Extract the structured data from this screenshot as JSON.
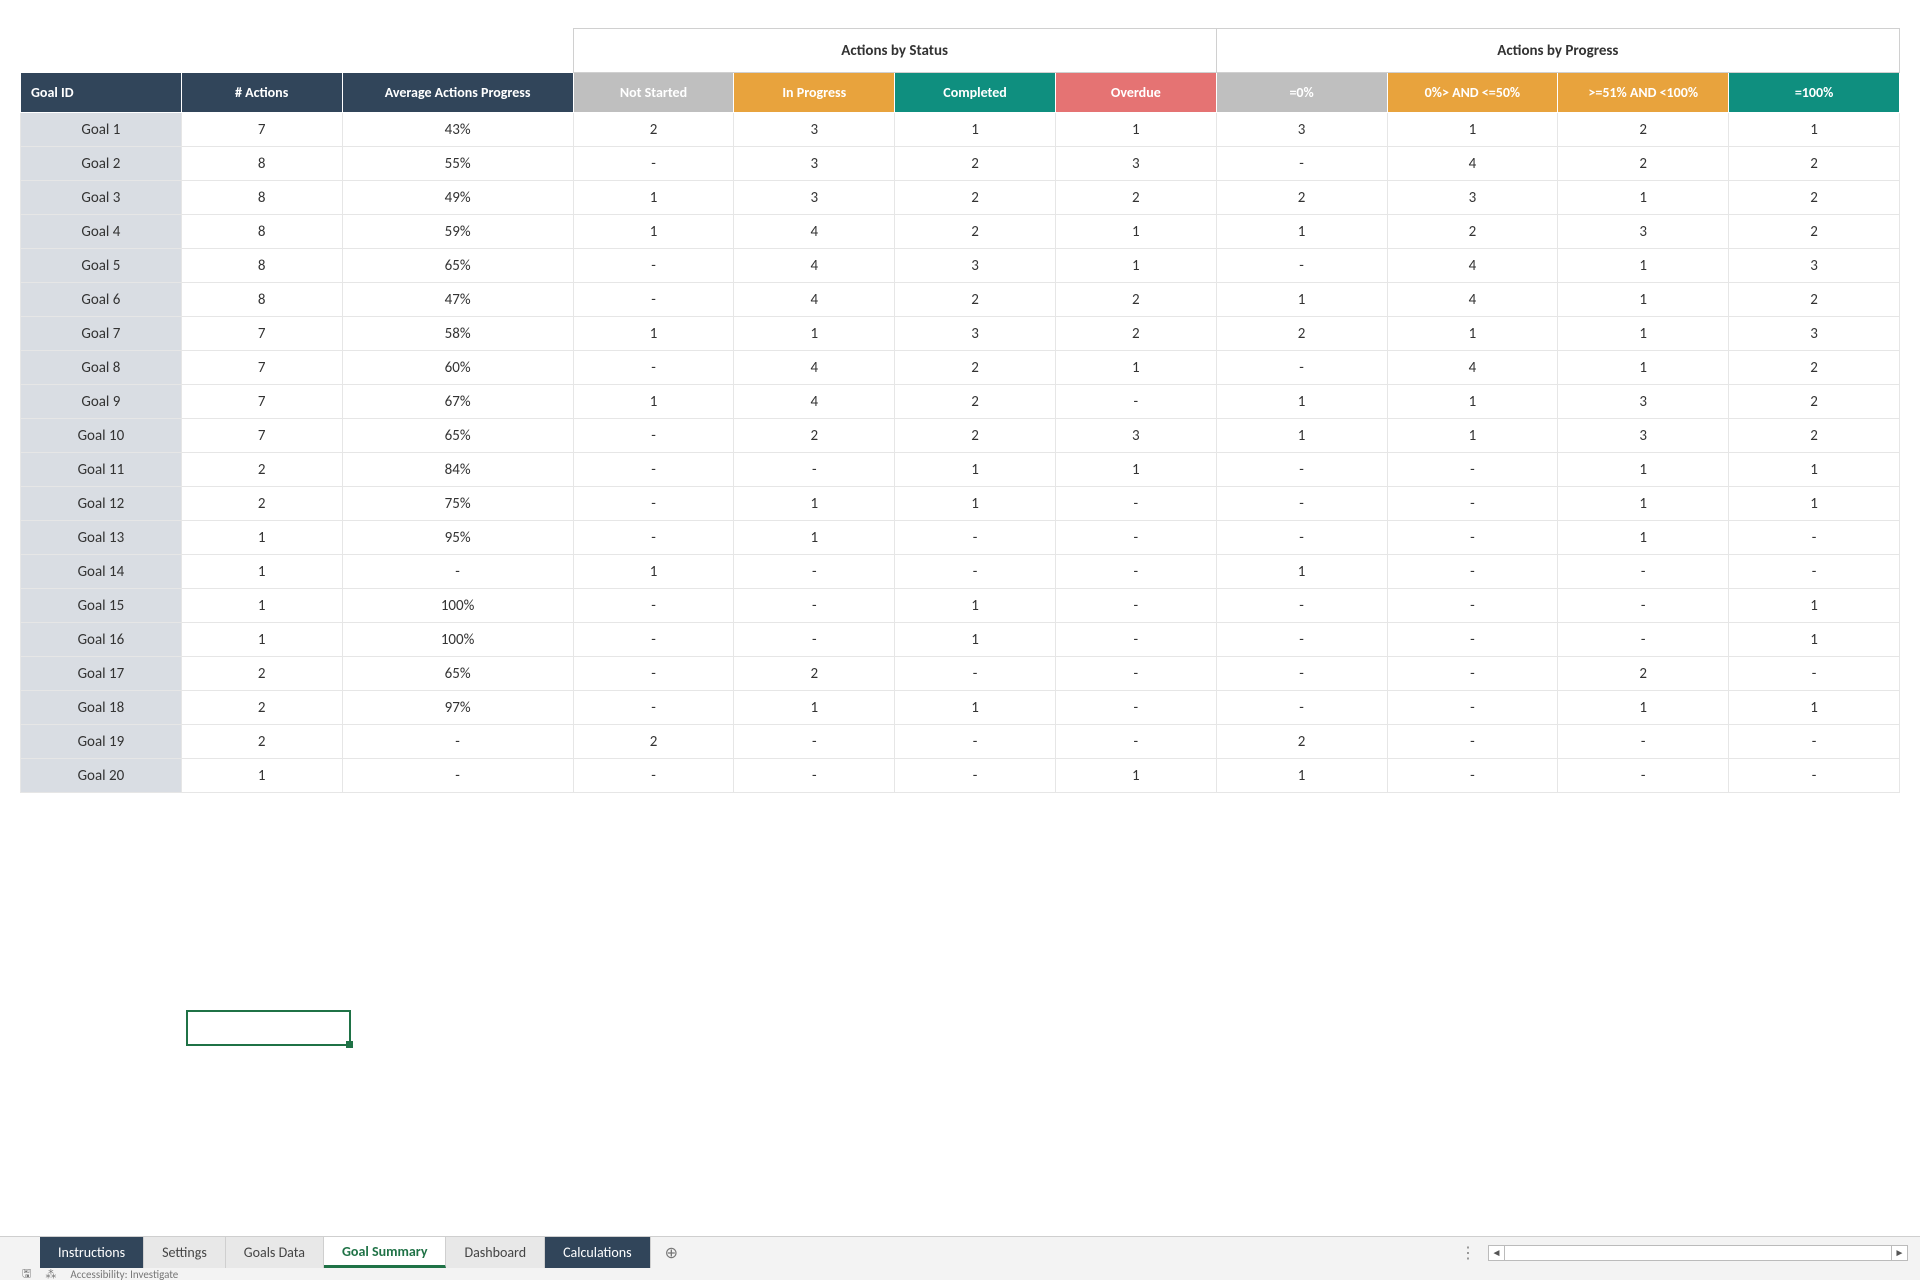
{
  "colors": {
    "hdr_dark": "#31455a",
    "hdr_grey": "#bfbfbf",
    "hdr_amber": "#e8a33d",
    "hdr_teal": "#0f8f7f",
    "hdr_red": "#e57373",
    "row_label_bg": "#d9dde3",
    "active_tab_accent": "#1f7246",
    "grid_border": "#e6e6e6"
  },
  "group_headers": {
    "status": "Actions by Status",
    "progress": "Actions by Progress"
  },
  "columns": {
    "goal_id": "Goal ID",
    "actions": "# Actions",
    "avg": "Average Actions Progress",
    "status": [
      "Not Started",
      "In Progress",
      "Completed",
      "Overdue"
    ],
    "progress": [
      "=0%",
      "0%> AND <=50%",
      ">=51% AND <100%",
      "=100%"
    ]
  },
  "status_header_styles": [
    "hdr-grey",
    "hdr-amber",
    "hdr-teal",
    "hdr-red"
  ],
  "progress_header_styles": [
    "hdr-grey",
    "hdr-amber",
    "hdr-amber",
    "hdr-teal"
  ],
  "rows": [
    {
      "id": "Goal 1",
      "actions": "7",
      "avg": "43%",
      "status": [
        "2",
        "3",
        "1",
        "1"
      ],
      "progress": [
        "3",
        "1",
        "2",
        "1"
      ]
    },
    {
      "id": "Goal 2",
      "actions": "8",
      "avg": "55%",
      "status": [
        "-",
        "3",
        "2",
        "3"
      ],
      "progress": [
        "-",
        "4",
        "2",
        "2"
      ]
    },
    {
      "id": "Goal 3",
      "actions": "8",
      "avg": "49%",
      "status": [
        "1",
        "3",
        "2",
        "2"
      ],
      "progress": [
        "2",
        "3",
        "1",
        "2"
      ]
    },
    {
      "id": "Goal 4",
      "actions": "8",
      "avg": "59%",
      "status": [
        "1",
        "4",
        "2",
        "1"
      ],
      "progress": [
        "1",
        "2",
        "3",
        "2"
      ]
    },
    {
      "id": "Goal 5",
      "actions": "8",
      "avg": "65%",
      "status": [
        "-",
        "4",
        "3",
        "1"
      ],
      "progress": [
        "-",
        "4",
        "1",
        "3"
      ]
    },
    {
      "id": "Goal 6",
      "actions": "8",
      "avg": "47%",
      "status": [
        "-",
        "4",
        "2",
        "2"
      ],
      "progress": [
        "1",
        "4",
        "1",
        "2"
      ]
    },
    {
      "id": "Goal 7",
      "actions": "7",
      "avg": "58%",
      "status": [
        "1",
        "1",
        "3",
        "2"
      ],
      "progress": [
        "2",
        "1",
        "1",
        "3"
      ]
    },
    {
      "id": "Goal 8",
      "actions": "7",
      "avg": "60%",
      "status": [
        "-",
        "4",
        "2",
        "1"
      ],
      "progress": [
        "-",
        "4",
        "1",
        "2"
      ]
    },
    {
      "id": "Goal 9",
      "actions": "7",
      "avg": "67%",
      "status": [
        "1",
        "4",
        "2",
        "-"
      ],
      "progress": [
        "1",
        "1",
        "3",
        "2"
      ]
    },
    {
      "id": "Goal 10",
      "actions": "7",
      "avg": "65%",
      "status": [
        "-",
        "2",
        "2",
        "3"
      ],
      "progress": [
        "1",
        "1",
        "3",
        "2"
      ]
    },
    {
      "id": "Goal 11",
      "actions": "2",
      "avg": "84%",
      "status": [
        "-",
        "-",
        "1",
        "1"
      ],
      "progress": [
        "-",
        "-",
        "1",
        "1"
      ]
    },
    {
      "id": "Goal 12",
      "actions": "2",
      "avg": "75%",
      "status": [
        "-",
        "1",
        "1",
        "-"
      ],
      "progress": [
        "-",
        "-",
        "1",
        "1"
      ]
    },
    {
      "id": "Goal 13",
      "actions": "1",
      "avg": "95%",
      "status": [
        "-",
        "1",
        "-",
        "-"
      ],
      "progress": [
        "-",
        "-",
        "1",
        "-"
      ]
    },
    {
      "id": "Goal 14",
      "actions": "1",
      "avg": "-",
      "status": [
        "1",
        "-",
        "-",
        "-"
      ],
      "progress": [
        "1",
        "-",
        "-",
        "-"
      ]
    },
    {
      "id": "Goal 15",
      "actions": "1",
      "avg": "100%",
      "status": [
        "-",
        "-",
        "1",
        "-"
      ],
      "progress": [
        "-",
        "-",
        "-",
        "1"
      ]
    },
    {
      "id": "Goal 16",
      "actions": "1",
      "avg": "100%",
      "status": [
        "-",
        "-",
        "1",
        "-"
      ],
      "progress": [
        "-",
        "-",
        "-",
        "1"
      ]
    },
    {
      "id": "Goal 17",
      "actions": "2",
      "avg": "65%",
      "status": [
        "-",
        "2",
        "-",
        "-"
      ],
      "progress": [
        "-",
        "-",
        "2",
        "-"
      ]
    },
    {
      "id": "Goal 18",
      "actions": "2",
      "avg": "97%",
      "status": [
        "-",
        "1",
        "1",
        "-"
      ],
      "progress": [
        "-",
        "-",
        "1",
        "1"
      ]
    },
    {
      "id": "Goal 19",
      "actions": "2",
      "avg": "-",
      "status": [
        "2",
        "-",
        "-",
        "-"
      ],
      "progress": [
        "2",
        "-",
        "-",
        "-"
      ]
    },
    {
      "id": "Goal 20",
      "actions": "1",
      "avg": "-",
      "status": [
        "-",
        "-",
        "-",
        "1"
      ],
      "progress": [
        "1",
        "-",
        "-",
        "-"
      ]
    }
  ],
  "tabs": [
    {
      "label": "Instructions",
      "style": "dark"
    },
    {
      "label": "Settings",
      "style": ""
    },
    {
      "label": "Goals Data",
      "style": ""
    },
    {
      "label": "Goal Summary",
      "style": "active"
    },
    {
      "label": "Dashboard",
      "style": ""
    },
    {
      "label": "Calculations",
      "style": "dark"
    }
  ],
  "new_tab_glyph": "⊕",
  "statusbar": {
    "lock": "",
    "ready_icon": "🖫",
    "accessibility": "Accessibility: Investigate"
  }
}
